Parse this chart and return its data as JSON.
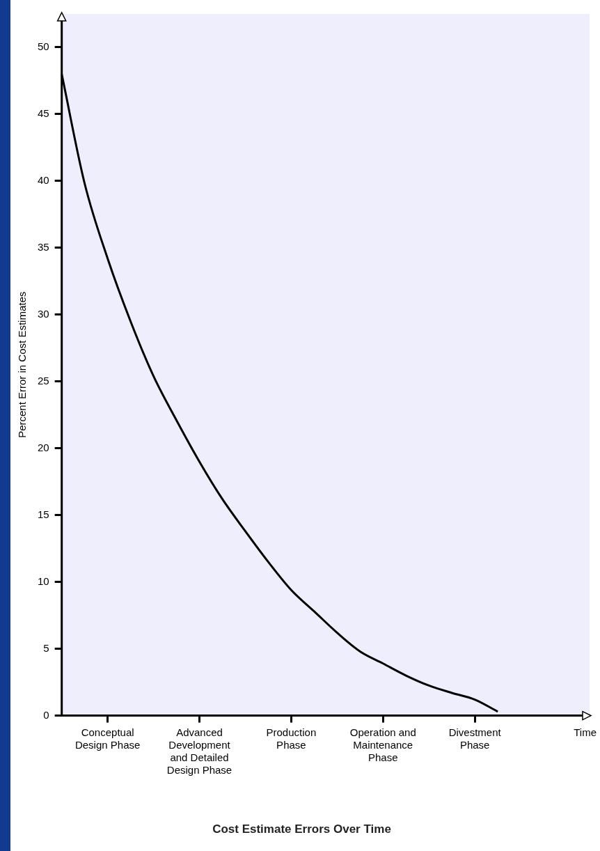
{
  "chart_data": {
    "type": "line",
    "title": "Cost Estimate Errors Over Time",
    "xlabel": "Time",
    "ylabel": "Percent Error in Cost Estimates",
    "categories": [
      null,
      null,
      "Conceptual Design Phase",
      null,
      null,
      null,
      "Advanced Development and Detailed Design Phase",
      null,
      null,
      null,
      "Production Phase",
      null,
      null,
      null,
      "Operation and Maintenance Phase",
      null,
      null,
      null,
      "Divestment Phase",
      null,
      null,
      null,
      null,
      null
    ],
    "series": [
      {
        "color": "#000000",
        "values": [
          48,
          39.8,
          34.2,
          29.5,
          25.4,
          22.1,
          19,
          16.2,
          13.8,
          11.5,
          9.4,
          7.8,
          6.2,
          4.8,
          3.9,
          3,
          2.25,
          1.7,
          1.2,
          0.3,
          null,
          null,
          null,
          null
        ]
      }
    ],
    "ylim": [
      0,
      52.5
    ],
    "yticks": [
      0,
      5,
      10,
      15,
      20,
      25,
      30,
      35,
      40,
      45,
      50
    ],
    "grid": false,
    "legend": false,
    "marker": "none",
    "line_style": "solid"
  }
}
